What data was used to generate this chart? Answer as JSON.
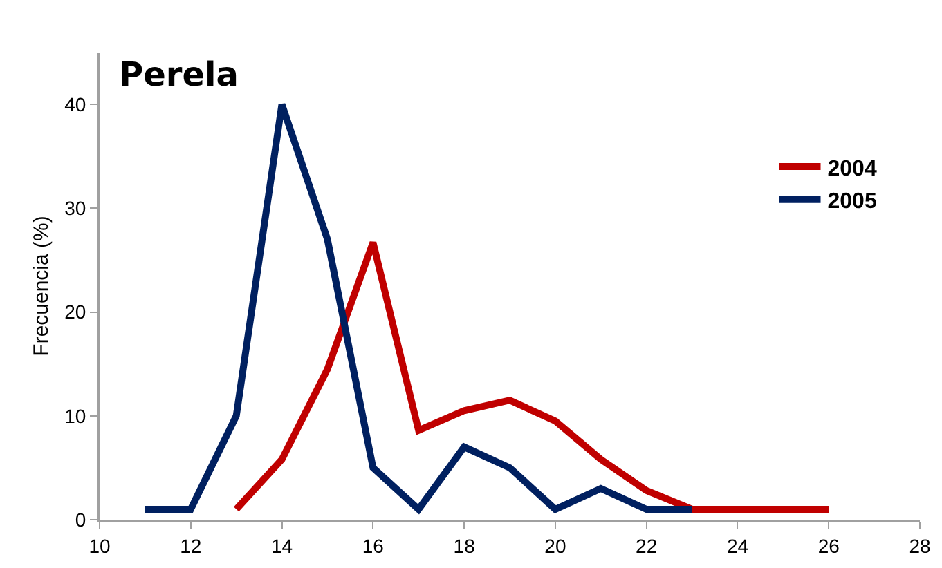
{
  "chart_data": {
    "type": "line",
    "title": "Perela",
    "ylabel": "Frecuencia (%)",
    "xlim": [
      10,
      28
    ],
    "xticks": [
      10,
      12,
      14,
      16,
      18,
      20,
      22,
      24,
      26,
      28
    ],
    "ylim": [
      0,
      45
    ],
    "yticks": [
      0,
      10,
      20,
      30,
      40
    ],
    "grid": false,
    "legend": "right",
    "marker": "none",
    "line_style": "solid",
    "series": [
      {
        "name": "2004",
        "color": "#c00000",
        "x": [
          13,
          14,
          15,
          16,
          17,
          18,
          19,
          20,
          21,
          22,
          23,
          24,
          25,
          26
        ],
        "values": [
          1,
          5.8,
          14.5,
          26.7,
          8.6,
          10.5,
          11.5,
          9.5,
          5.8,
          2.8,
          1,
          1,
          1,
          1
        ]
      },
      {
        "name": "2005",
        "color": "#002060",
        "x": [
          11,
          12,
          13,
          14,
          15,
          16,
          17,
          18,
          19,
          20,
          21,
          22,
          23
        ],
        "values": [
          1,
          1,
          10,
          40,
          27,
          5,
          1,
          7,
          5,
          1,
          3,
          1,
          1
        ]
      }
    ]
  }
}
